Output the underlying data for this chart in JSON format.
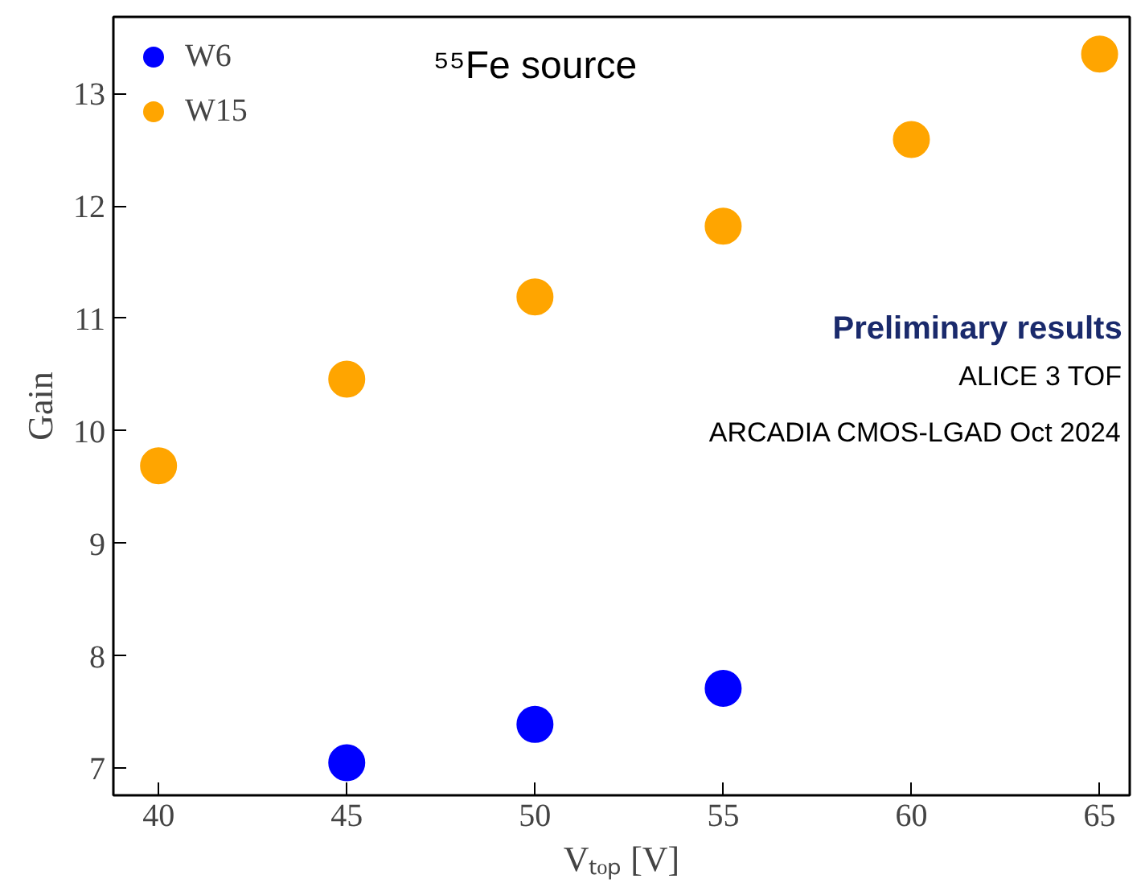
{
  "chart_data": {
    "type": "scatter",
    "xlabel": "Vₜₒₚ [V]",
    "ylabel": "Gain",
    "xlim": [
      38.8,
      65.8
    ],
    "ylim": [
      6.76,
      13.68
    ],
    "xticks": [
      40,
      45,
      50,
      55,
      60,
      65
    ],
    "yticks": [
      7,
      8,
      9,
      10,
      11,
      12,
      13
    ],
    "series": [
      {
        "name": "W6",
        "color": "#0000ff",
        "x": [
          45,
          50,
          55
        ],
        "values": [
          7.05,
          7.39,
          7.71
        ]
      },
      {
        "name": "W15",
        "color": "#ffa500",
        "x": [
          40,
          45,
          50,
          55,
          60,
          65
        ],
        "values": [
          9.69,
          10.46,
          11.19,
          11.82,
          12.59,
          13.35
        ]
      }
    ],
    "annotations": [
      "⁵⁵Fe source",
      "Preliminary results",
      "ALICE 3 TOF",
      "ARCADIA CMOS-LGAD Oct 2024"
    ],
    "marker": "circle",
    "grid": false,
    "legend": "top left"
  }
}
